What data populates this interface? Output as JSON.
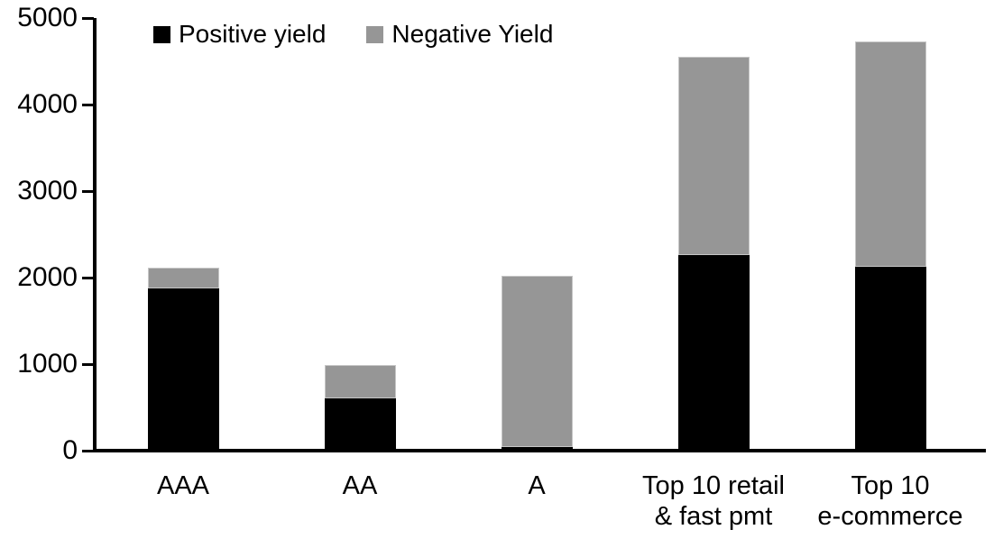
{
  "chart_data": {
    "type": "bar",
    "stacked": true,
    "title": "",
    "xlabel": "",
    "ylabel": "",
    "categories": [
      "AAA",
      "AA",
      "A",
      "Top 10 retail\n& fast pmt",
      "Top 10\ne-commerce"
    ],
    "series": [
      {
        "name": "Positive yield",
        "color": "#000000",
        "values": [
          1880,
          600,
          45,
          2260,
          2120
        ]
      },
      {
        "name": "Negative Yield",
        "color": "#969696",
        "values": [
          230,
          390,
          1975,
          2290,
          2610
        ]
      }
    ],
    "totals": [
      2110,
      990,
      2020,
      4550,
      4730
    ],
    "ylim": [
      0,
      5000
    ],
    "yticks": [
      0,
      1000,
      2000,
      3000,
      4000,
      5000
    ],
    "ytick_labels": [
      "0",
      "1000",
      "2000",
      "3000",
      "4000",
      "5000"
    ],
    "grid": false,
    "legend_position": "top",
    "colors": {
      "axis": "#000000",
      "positive": "#000000",
      "negative": "#969696",
      "background": "#ffffff"
    }
  }
}
